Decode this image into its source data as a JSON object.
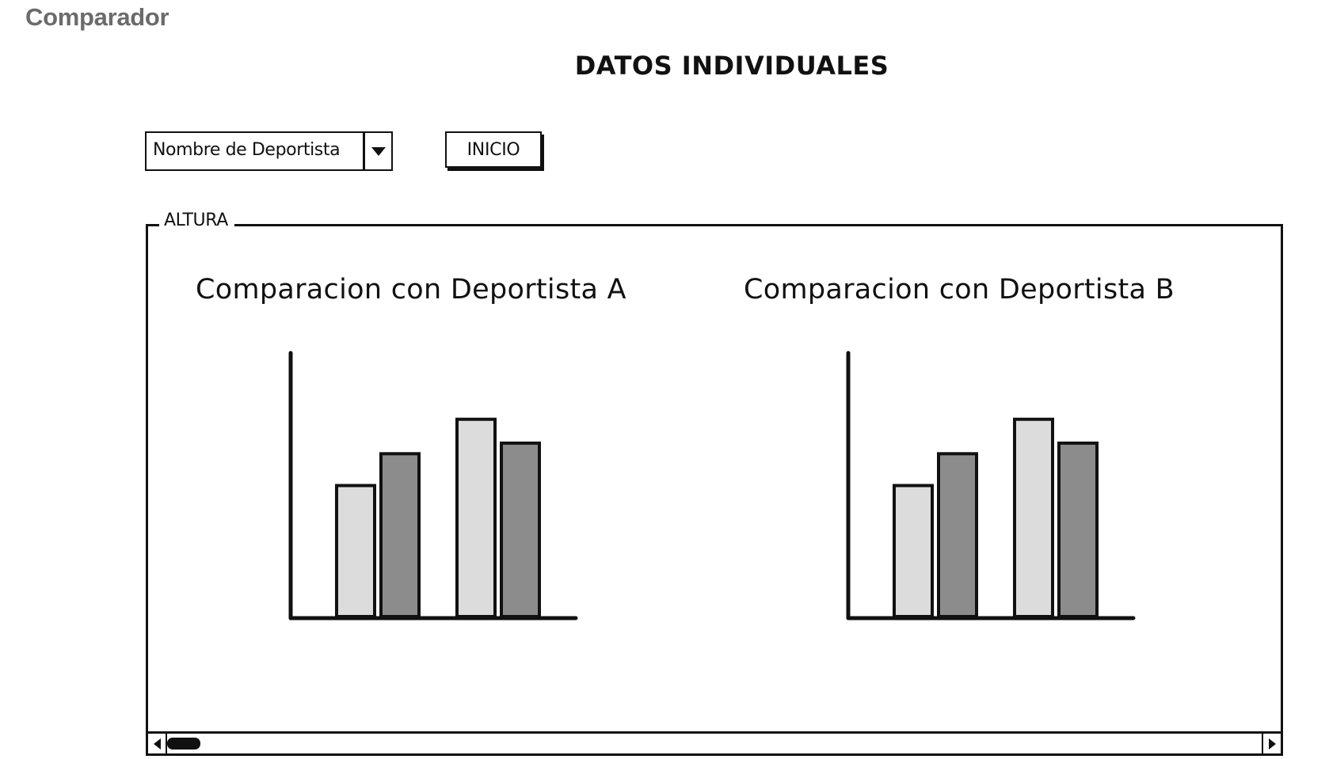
{
  "app": {
    "title": "Comparador"
  },
  "page": {
    "title": "DATOS INDIVIDUALES"
  },
  "controls": {
    "athlete_select_value": "Nombre de Deportista",
    "start_button_label": "INICIO"
  },
  "group": {
    "legend": "ALTURA"
  },
  "colors": {
    "bar_light": "#dcdcdc",
    "bar_dark": "#8c8c8c",
    "stroke": "#111111"
  },
  "chart_data": [
    {
      "type": "bar",
      "title": "Comparacion con Deportista A",
      "categories": [
        "",
        ""
      ],
      "series": [
        {
          "name": "",
          "values": [
            50,
            75
          ]
        },
        {
          "name": "",
          "values": [
            62,
            66
          ]
        }
      ],
      "xlabel": "",
      "ylabel": "",
      "ylim": [
        0,
        100
      ]
    },
    {
      "type": "bar",
      "title": "Comparacion con Deportista B",
      "categories": [
        "",
        ""
      ],
      "series": [
        {
          "name": "",
          "values": [
            50,
            75
          ]
        },
        {
          "name": "",
          "values": [
            62,
            66
          ]
        }
      ],
      "xlabel": "",
      "ylabel": "",
      "ylim": [
        0,
        100
      ]
    }
  ]
}
